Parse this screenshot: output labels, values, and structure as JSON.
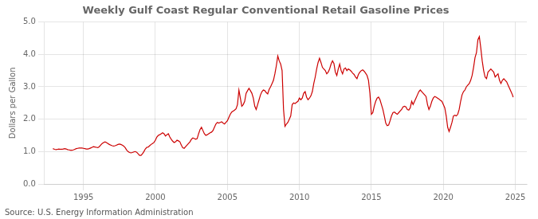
{
  "chart_data": {
    "type": "line",
    "title": "Weekly Gulf Coast Regular Conventional Retail Gasoline Prices",
    "ylabel": "Dollars per Gallon",
    "annotation": "Source: U.S. Energy Information Administration",
    "color": "#cc0000",
    "grid": true,
    "xlim": [
      1992.3,
      2025.8
    ],
    "xticks": [
      1995,
      2000,
      2005,
      2010,
      2015,
      2020,
      2025
    ],
    "ylim": [
      0.0,
      5.0
    ],
    "yticks": [
      {
        "value": 0.0,
        "label": "0.0"
      },
      {
        "value": 1.0,
        "label": "1.0"
      },
      {
        "value": 2.0,
        "label": "2.0"
      },
      {
        "value": 3.0,
        "label": "3.0"
      },
      {
        "value": 4.0,
        "label": "4.0"
      },
      {
        "value": 5.0,
        "label": "5.0"
      }
    ],
    "x": [
      1992.88,
      1993.0,
      1993.1,
      1993.2,
      1993.3,
      1993.4,
      1993.5,
      1993.6,
      1993.7,
      1993.8,
      1993.9,
      1994.0,
      1994.1,
      1994.2,
      1994.3,
      1994.4,
      1994.5,
      1994.6,
      1994.7,
      1994.8,
      1994.9,
      1995.0,
      1995.1,
      1995.2,
      1995.3,
      1995.4,
      1995.5,
      1995.6,
      1995.7,
      1995.8,
      1995.9,
      1996.0,
      1996.1,
      1996.2,
      1996.3,
      1996.4,
      1996.5,
      1996.6,
      1996.7,
      1996.8,
      1996.9,
      1997.0,
      1997.1,
      1997.2,
      1997.3,
      1997.4,
      1997.5,
      1997.6,
      1997.7,
      1997.8,
      1997.9,
      1998.0,
      1998.1,
      1998.2,
      1998.3,
      1998.4,
      1998.5,
      1998.6,
      1998.7,
      1998.8,
      1998.9,
      1999.0,
      1999.1,
      1999.2,
      1999.3,
      1999.4,
      1999.5,
      1999.6,
      1999.7,
      1999.8,
      1999.9,
      2000.0,
      2000.1,
      2000.2,
      2000.3,
      2000.4,
      2000.5,
      2000.6,
      2000.7,
      2000.8,
      2000.9,
      2001.0,
      2001.1,
      2001.2,
      2001.3,
      2001.4,
      2001.5,
      2001.6,
      2001.7,
      2001.8,
      2001.9,
      2002.0,
      2002.1,
      2002.2,
      2002.3,
      2002.4,
      2002.5,
      2002.6,
      2002.7,
      2002.8,
      2002.9,
      2003.0,
      2003.1,
      2003.2,
      2003.3,
      2003.4,
      2003.5,
      2003.6,
      2003.7,
      2003.8,
      2003.9,
      2004.0,
      2004.1,
      2004.2,
      2004.3,
      2004.4,
      2004.5,
      2004.6,
      2004.7,
      2004.8,
      2004.9,
      2005.0,
      2005.1,
      2005.2,
      2005.3,
      2005.4,
      2005.5,
      2005.6,
      2005.7,
      2005.8,
      2005.9,
      2006.0,
      2006.1,
      2006.2,
      2006.3,
      2006.4,
      2006.5,
      2006.6,
      2006.7,
      2006.8,
      2006.9,
      2007.0,
      2007.1,
      2007.2,
      2007.3,
      2007.4,
      2007.5,
      2007.6,
      2007.7,
      2007.8,
      2007.9,
      2008.0,
      2008.1,
      2008.2,
      2008.3,
      2008.4,
      2008.5,
      2008.6,
      2008.7,
      2008.8,
      2008.9,
      2009.0,
      2009.1,
      2009.2,
      2009.3,
      2009.4,
      2009.5,
      2009.6,
      2009.7,
      2009.8,
      2009.9,
      2010.0,
      2010.1,
      2010.2,
      2010.3,
      2010.4,
      2010.5,
      2010.6,
      2010.7,
      2010.8,
      2010.9,
      2011.0,
      2011.1,
      2011.2,
      2011.3,
      2011.4,
      2011.5,
      2011.6,
      2011.7,
      2011.8,
      2011.9,
      2012.0,
      2012.1,
      2012.2,
      2012.3,
      2012.4,
      2012.5,
      2012.6,
      2012.7,
      2012.8,
      2012.9,
      2013.0,
      2013.1,
      2013.2,
      2013.3,
      2013.4,
      2013.5,
      2013.6,
      2013.7,
      2013.8,
      2013.9,
      2014.0,
      2014.1,
      2014.2,
      2014.3,
      2014.4,
      2014.5,
      2014.6,
      2014.7,
      2014.8,
      2014.9,
      2015.0,
      2015.1,
      2015.2,
      2015.3,
      2015.4,
      2015.5,
      2015.6,
      2015.7,
      2015.8,
      2015.9,
      2016.0,
      2016.1,
      2016.2,
      2016.3,
      2016.4,
      2016.5,
      2016.6,
      2016.7,
      2016.8,
      2016.9,
      2017.0,
      2017.1,
      2017.2,
      2017.3,
      2017.4,
      2017.5,
      2017.6,
      2017.7,
      2017.8,
      2017.9,
      2018.0,
      2018.1,
      2018.2,
      2018.3,
      2018.4,
      2018.5,
      2018.6,
      2018.7,
      2018.8,
      2018.9,
      2019.0,
      2019.1,
      2019.2,
      2019.3,
      2019.4,
      2019.5,
      2019.6,
      2019.7,
      2019.8,
      2019.9,
      2020.0,
      2020.1,
      2020.2,
      2020.3,
      2020.4,
      2020.5,
      2020.6,
      2020.7,
      2020.8,
      2020.9,
      2021.0,
      2021.1,
      2021.2,
      2021.3,
      2021.4,
      2021.5,
      2021.6,
      2021.7,
      2021.8,
      2021.9,
      2022.0,
      2022.1,
      2022.2,
      2022.3,
      2022.4,
      2022.5,
      2022.6,
      2022.7,
      2022.8,
      2022.9,
      2023.0,
      2023.1,
      2023.2,
      2023.3,
      2023.4,
      2023.5,
      2023.6,
      2023.7,
      2023.8,
      2023.9,
      2024.0,
      2024.1,
      2024.2,
      2024.3,
      2024.4,
      2024.5,
      2024.6,
      2024.7,
      2024.8,
      2024.85
    ],
    "values": [
      1.09,
      1.07,
      1.06,
      1.07,
      1.08,
      1.07,
      1.07,
      1.08,
      1.09,
      1.08,
      1.06,
      1.05,
      1.04,
      1.04,
      1.05,
      1.07,
      1.09,
      1.1,
      1.11,
      1.11,
      1.11,
      1.1,
      1.09,
      1.08,
      1.08,
      1.09,
      1.11,
      1.13,
      1.15,
      1.14,
      1.13,
      1.12,
      1.15,
      1.2,
      1.25,
      1.28,
      1.3,
      1.28,
      1.25,
      1.22,
      1.2,
      1.18,
      1.17,
      1.18,
      1.2,
      1.22,
      1.23,
      1.22,
      1.2,
      1.17,
      1.12,
      1.05,
      1.0,
      0.97,
      0.96,
      0.97,
      0.99,
      1.0,
      0.98,
      0.93,
      0.88,
      0.88,
      0.93,
      1.0,
      1.08,
      1.13,
      1.14,
      1.18,
      1.22,
      1.25,
      1.28,
      1.35,
      1.45,
      1.5,
      1.52,
      1.55,
      1.58,
      1.55,
      1.48,
      1.52,
      1.55,
      1.45,
      1.38,
      1.32,
      1.28,
      1.3,
      1.35,
      1.33,
      1.3,
      1.2,
      1.12,
      1.1,
      1.15,
      1.2,
      1.25,
      1.3,
      1.38,
      1.42,
      1.4,
      1.38,
      1.4,
      1.55,
      1.68,
      1.75,
      1.65,
      1.55,
      1.5,
      1.52,
      1.55,
      1.58,
      1.6,
      1.65,
      1.75,
      1.85,
      1.9,
      1.88,
      1.9,
      1.92,
      1.88,
      1.85,
      1.9,
      1.95,
      2.05,
      2.15,
      2.22,
      2.25,
      2.28,
      2.32,
      2.45,
      2.9,
      2.65,
      2.4,
      2.45,
      2.55,
      2.8,
      2.88,
      2.95,
      2.88,
      2.8,
      2.65,
      2.4,
      2.3,
      2.45,
      2.6,
      2.75,
      2.85,
      2.9,
      2.88,
      2.82,
      2.78,
      2.92,
      3.0,
      3.1,
      3.2,
      3.4,
      3.65,
      3.95,
      3.8,
      3.7,
      3.5,
      2.3,
      1.78,
      1.85,
      1.9,
      2.0,
      2.1,
      2.45,
      2.5,
      2.48,
      2.52,
      2.55,
      2.65,
      2.6,
      2.65,
      2.8,
      2.85,
      2.68,
      2.6,
      2.65,
      2.72,
      2.85,
      3.1,
      3.3,
      3.55,
      3.75,
      3.88,
      3.75,
      3.6,
      3.55,
      3.5,
      3.4,
      3.45,
      3.55,
      3.7,
      3.8,
      3.72,
      3.45,
      3.35,
      3.55,
      3.7,
      3.5,
      3.4,
      3.55,
      3.58,
      3.5,
      3.55,
      3.52,
      3.48,
      3.42,
      3.38,
      3.3,
      3.25,
      3.38,
      3.45,
      3.5,
      3.52,
      3.48,
      3.42,
      3.35,
      3.2,
      2.8,
      2.15,
      2.2,
      2.4,
      2.55,
      2.65,
      2.68,
      2.6,
      2.45,
      2.3,
      2.1,
      1.88,
      1.8,
      1.82,
      1.95,
      2.1,
      2.2,
      2.22,
      2.18,
      2.15,
      2.2,
      2.25,
      2.3,
      2.38,
      2.4,
      2.38,
      2.3,
      2.28,
      2.35,
      2.55,
      2.45,
      2.55,
      2.65,
      2.75,
      2.85,
      2.9,
      2.85,
      2.8,
      2.75,
      2.7,
      2.45,
      2.3,
      2.4,
      2.55,
      2.65,
      2.7,
      2.68,
      2.65,
      2.62,
      2.58,
      2.55,
      2.45,
      2.35,
      2.1,
      1.75,
      1.62,
      1.75,
      1.9,
      2.1,
      2.12,
      2.1,
      2.15,
      2.3,
      2.55,
      2.75,
      2.85,
      2.9,
      3.0,
      3.05,
      3.1,
      3.2,
      3.35,
      3.6,
      3.9,
      4.05,
      4.45,
      4.55,
      4.2,
      3.8,
      3.5,
      3.3,
      3.25,
      3.45,
      3.5,
      3.55,
      3.5,
      3.45,
      3.3,
      3.35,
      3.4,
      3.2,
      3.1,
      3.2,
      3.25,
      3.2,
      3.15,
      3.05,
      2.95,
      2.85,
      2.75,
      2.68
    ]
  }
}
